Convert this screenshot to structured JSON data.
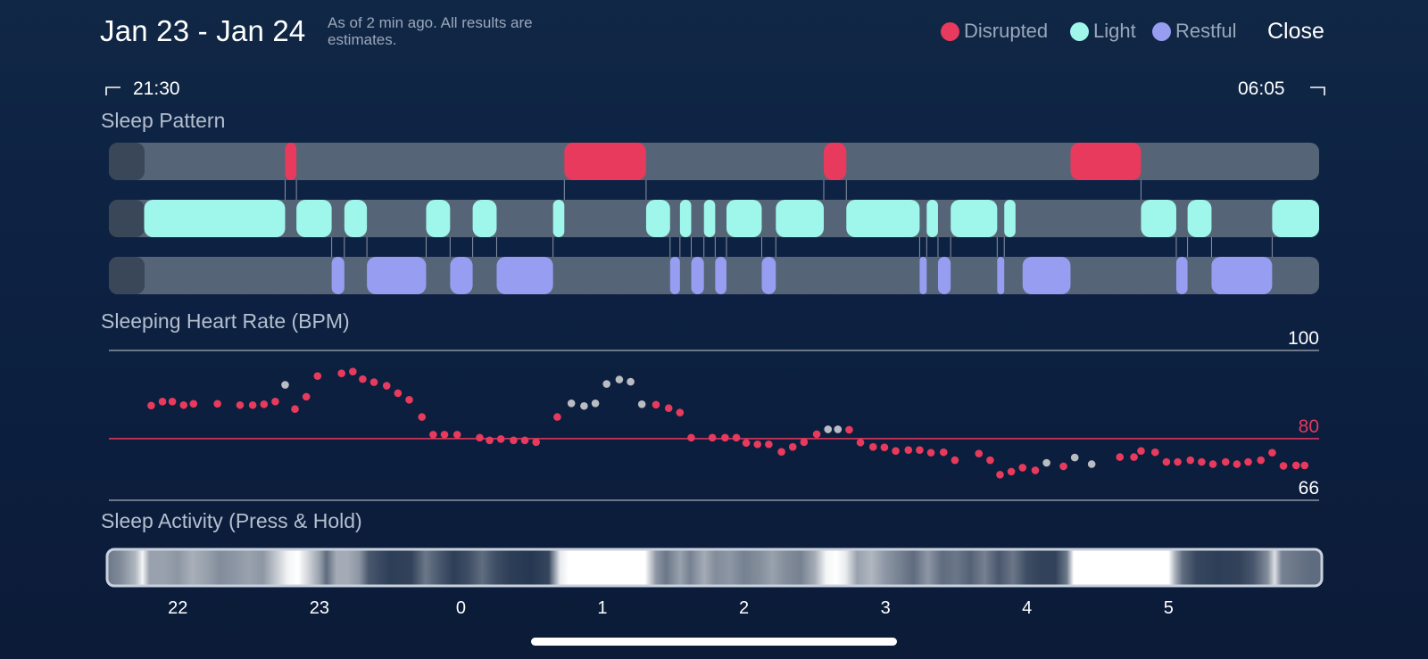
{
  "header": {
    "title": "Jan 23 - Jan 24",
    "subtitle": "As of 2 min ago. All results are estimates.",
    "close_label": "Close"
  },
  "legend": [
    {
      "label": "Disrupted",
      "color": "#e83a5c"
    },
    {
      "label": "Light",
      "color": "#9ef7ea"
    },
    {
      "label": "Restful",
      "color": "#979df0"
    }
  ],
  "time_range": {
    "start": "21:30",
    "end": "06:05"
  },
  "sections": {
    "sleep_pattern": "Sleep Pattern",
    "heart_rate": "Sleeping Heart Rate (BPM)",
    "activity": "Sleep Activity (Press & Hold)"
  },
  "colors": {
    "disrupted": "#e83a5c",
    "light": "#9ef7ea",
    "restful": "#979df0",
    "track": "#556476",
    "track_cap": "#3a4758",
    "grey_point": "#b9bcc2",
    "grid": "#8b95a3",
    "threshold": "#e23a5e"
  },
  "chart_data": [
    {
      "type": "timeline",
      "title": "Sleep Pattern",
      "x_unit": "hours (clock time, 24 = midnight)",
      "x_range": [
        21.5,
        30.083
      ],
      "rows": [
        {
          "name": "Disrupted",
          "segments": [
            [
              22.75,
              22.83
            ],
            [
              24.73,
              25.31
            ],
            [
              26.57,
              26.73
            ],
            [
              28.32,
              28.82
            ]
          ]
        },
        {
          "name": "Light",
          "segments": [
            [
              21.75,
              22.75
            ],
            [
              22.83,
              23.08
            ],
            [
              23.17,
              23.33
            ],
            [
              23.75,
              23.92
            ],
            [
              24.08,
              24.25
            ],
            [
              24.65,
              24.73
            ],
            [
              25.31,
              25.48
            ],
            [
              25.55,
              25.63
            ],
            [
              25.72,
              25.8
            ],
            [
              25.88,
              26.13
            ],
            [
              26.23,
              26.57
            ],
            [
              26.73,
              27.25
            ],
            [
              27.3,
              27.38
            ],
            [
              27.47,
              27.8
            ],
            [
              27.85,
              27.93
            ],
            [
              28.82,
              29.07
            ],
            [
              29.15,
              29.32
            ],
            [
              29.75,
              30.083
            ]
          ]
        },
        {
          "name": "Restful",
          "segments": [
            [
              23.08,
              23.17
            ],
            [
              23.33,
              23.75
            ],
            [
              23.92,
              24.08
            ],
            [
              24.25,
              24.65
            ],
            [
              25.48,
              25.55
            ],
            [
              25.63,
              25.72
            ],
            [
              25.8,
              25.88
            ],
            [
              26.13,
              26.23
            ],
            [
              27.25,
              27.3
            ],
            [
              27.38,
              27.47
            ],
            [
              27.8,
              27.85
            ],
            [
              27.98,
              28.32
            ],
            [
              29.07,
              29.15
            ],
            [
              29.32,
              29.75
            ]
          ]
        }
      ]
    },
    {
      "type": "scatter",
      "title": "Sleeping Heart Rate (BPM)",
      "x_unit": "hours (clock time, 24 = midnight)",
      "ylim": [
        66,
        100
      ],
      "yticks": [
        {
          "value": 100,
          "label": "100"
        },
        {
          "value": 80,
          "label": "80",
          "highlight": true
        },
        {
          "value": 66,
          "label": "66"
        }
      ],
      "series": [
        {
          "name": "Heart rate",
          "points": [
            [
              21.8,
              87.5
            ],
            [
              21.88,
              88.4
            ],
            [
              21.95,
              88.4
            ],
            [
              22.03,
              87.6
            ],
            [
              22.1,
              87.9
            ],
            [
              22.27,
              87.9
            ],
            [
              22.43,
              87.6
            ],
            [
              22.52,
              87.6
            ],
            [
              22.6,
              87.8
            ],
            [
              22.68,
              88.4
            ],
            [
              22.82,
              86.7
            ],
            [
              22.9,
              89.5
            ],
            [
              22.98,
              94.2
            ],
            [
              23.15,
              94.8
            ],
            [
              23.23,
              95.2
            ],
            [
              23.3,
              93.5
            ],
            [
              23.38,
              92.8
            ],
            [
              23.47,
              92.0
            ],
            [
              23.55,
              90.3
            ],
            [
              23.63,
              88.8
            ],
            [
              23.72,
              84.9
            ],
            [
              23.8,
              80.9
            ],
            [
              23.88,
              80.9
            ],
            [
              23.97,
              80.9
            ],
            [
              24.13,
              80.2
            ],
            [
              24.2,
              79.6
            ],
            [
              24.28,
              79.9
            ],
            [
              24.37,
              79.6
            ],
            [
              24.45,
              79.6
            ],
            [
              24.53,
              79.2
            ],
            [
              24.68,
              84.9
            ],
            [
              25.38,
              87.7
            ],
            [
              25.47,
              86.9
            ],
            [
              25.55,
              85.9
            ],
            [
              25.63,
              80.2
            ],
            [
              25.78,
              80.2
            ],
            [
              25.87,
              80.2
            ],
            [
              25.95,
              80.2
            ],
            [
              26.02,
              79.0
            ],
            [
              26.1,
              78.7
            ],
            [
              26.18,
              78.7
            ],
            [
              26.27,
              77.0
            ],
            [
              26.35,
              78.1
            ],
            [
              26.43,
              79.2
            ],
            [
              26.52,
              81.0
            ],
            [
              26.75,
              82.0
            ],
            [
              26.83,
              79.1
            ],
            [
              26.92,
              78.1
            ],
            [
              27.0,
              78.0
            ],
            [
              27.08,
              77.2
            ],
            [
              27.17,
              77.4
            ],
            [
              27.25,
              77.4
            ],
            [
              27.33,
              76.8
            ],
            [
              27.42,
              76.9
            ],
            [
              27.5,
              75.1
            ],
            [
              27.67,
              76.6
            ],
            [
              27.75,
              75.1
            ],
            [
              27.82,
              71.8
            ],
            [
              27.9,
              72.5
            ],
            [
              27.98,
              73.4
            ],
            [
              28.07,
              72.8
            ],
            [
              28.27,
              73.7
            ],
            [
              28.67,
              75.8
            ],
            [
              28.77,
              75.8
            ],
            [
              28.82,
              77.2
            ],
            [
              28.92,
              76.9
            ],
            [
              29.0,
              74.7
            ],
            [
              29.08,
              74.7
            ],
            [
              29.17,
              75.1
            ],
            [
              29.25,
              74.7
            ],
            [
              29.33,
              74.2
            ],
            [
              29.42,
              74.7
            ],
            [
              29.5,
              74.2
            ],
            [
              29.58,
              74.7
            ],
            [
              29.67,
              75.1
            ],
            [
              29.75,
              76.8
            ],
            [
              29.83,
              73.8
            ],
            [
              29.92,
              73.9
            ],
            [
              29.98,
              73.9
            ]
          ]
        },
        {
          "name": "Estimated (grey)",
          "points": [
            [
              22.75,
              92.2
            ],
            [
              24.78,
              88.0
            ],
            [
              24.87,
              87.4
            ],
            [
              24.95,
              88.0
            ],
            [
              25.03,
              92.4
            ],
            [
              25.12,
              93.4
            ],
            [
              25.2,
              92.9
            ],
            [
              25.28,
              87.8
            ],
            [
              26.6,
              82.1
            ],
            [
              26.67,
              82.1
            ],
            [
              28.15,
              74.5
            ],
            [
              28.35,
              75.7
            ],
            [
              28.47,
              74.2
            ]
          ]
        }
      ]
    },
    {
      "type": "heatmap",
      "title": "Sleep Activity (Press & Hold)",
      "x_unit": "hours (clock time, 24 = midnight)",
      "x_ticks": [
        {
          "value": 22,
          "label": "22"
        },
        {
          "value": 23,
          "label": "23"
        },
        {
          "value": 24,
          "label": "0"
        },
        {
          "value": 25,
          "label": "1"
        },
        {
          "value": 26,
          "label": "2"
        },
        {
          "value": 27,
          "label": "3"
        },
        {
          "value": 28,
          "label": "4"
        },
        {
          "value": 29,
          "label": "5"
        }
      ],
      "intensity": [
        [
          21.5,
          0.35
        ],
        [
          21.6,
          0.45
        ],
        [
          21.7,
          0.65
        ],
        [
          21.75,
          0.95
        ],
        [
          21.8,
          0.55
        ],
        [
          21.9,
          0.55
        ],
        [
          22.0,
          0.5
        ],
        [
          22.1,
          0.62
        ],
        [
          22.2,
          0.55
        ],
        [
          22.3,
          0.45
        ],
        [
          22.4,
          0.5
        ],
        [
          22.5,
          0.55
        ],
        [
          22.6,
          0.5
        ],
        [
          22.7,
          0.75
        ],
        [
          22.78,
          0.95
        ],
        [
          22.85,
          1.0
        ],
        [
          22.92,
          0.8
        ],
        [
          23.0,
          0.55
        ],
        [
          23.05,
          0.3
        ],
        [
          23.12,
          0.6
        ],
        [
          23.2,
          0.6
        ],
        [
          23.28,
          0.5
        ],
        [
          23.35,
          0.2
        ],
        [
          23.5,
          0.08
        ],
        [
          23.65,
          0.1
        ],
        [
          23.75,
          0.35
        ],
        [
          23.85,
          0.2
        ],
        [
          23.95,
          0.08
        ],
        [
          24.05,
          0.15
        ],
        [
          24.15,
          0.3
        ],
        [
          24.25,
          0.15
        ],
        [
          24.35,
          0.08
        ],
        [
          24.5,
          0.05
        ],
        [
          24.62,
          0.12
        ],
        [
          24.7,
          0.9
        ],
        [
          24.76,
          1.0
        ],
        [
          25.3,
          1.0
        ],
        [
          25.38,
          0.5
        ],
        [
          25.45,
          0.35
        ],
        [
          25.55,
          0.55
        ],
        [
          25.62,
          0.4
        ],
        [
          25.72,
          0.6
        ],
        [
          25.8,
          0.45
        ],
        [
          25.9,
          0.5
        ],
        [
          26.0,
          0.4
        ],
        [
          26.1,
          0.45
        ],
        [
          26.2,
          0.55
        ],
        [
          26.3,
          0.45
        ],
        [
          26.4,
          0.4
        ],
        [
          26.5,
          0.6
        ],
        [
          26.58,
          0.95
        ],
        [
          26.65,
          1.0
        ],
        [
          26.72,
          0.9
        ],
        [
          26.8,
          0.55
        ],
        [
          26.9,
          0.65
        ],
        [
          27.0,
          0.5
        ],
        [
          27.1,
          0.4
        ],
        [
          27.2,
          0.3
        ],
        [
          27.3,
          0.5
        ],
        [
          27.4,
          0.3
        ],
        [
          27.5,
          0.35
        ],
        [
          27.6,
          0.25
        ],
        [
          27.7,
          0.4
        ],
        [
          27.8,
          0.2
        ],
        [
          27.9,
          0.35
        ],
        [
          28.0,
          0.15
        ],
        [
          28.1,
          0.1
        ],
        [
          28.2,
          0.1
        ],
        [
          28.28,
          0.35
        ],
        [
          28.33,
          1.0
        ],
        [
          29.0,
          1.0
        ],
        [
          29.05,
          0.6
        ],
        [
          29.1,
          0.3
        ],
        [
          29.2,
          0.12
        ],
        [
          29.35,
          0.08
        ],
        [
          29.5,
          0.1
        ],
        [
          29.6,
          0.2
        ],
        [
          29.7,
          0.45
        ],
        [
          29.75,
          0.85
        ],
        [
          29.8,
          0.4
        ],
        [
          29.9,
          0.35
        ],
        [
          30.0,
          0.3
        ],
        [
          30.083,
          0.3
        ]
      ]
    }
  ]
}
